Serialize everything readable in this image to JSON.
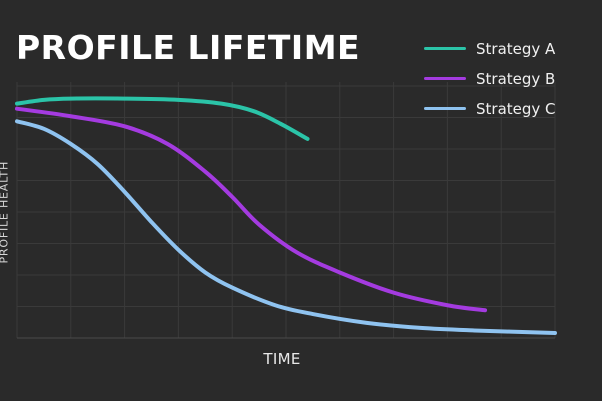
{
  "chart_data": {
    "type": "line",
    "title": "PROFILE LIFETIME",
    "xlabel": "TIME",
    "ylabel": "PROFILE HEALTH",
    "xlim": [
      0,
      100
    ],
    "ylim": [
      0,
      100
    ],
    "grid": true,
    "legend_position": "top-right",
    "series": [
      {
        "name": "Strategy A",
        "color": "#2bc4a8",
        "points": [
          [
            0,
            93
          ],
          [
            5,
            94.5
          ],
          [
            10,
            95
          ],
          [
            20,
            95
          ],
          [
            30,
            94.5
          ],
          [
            38,
            93
          ],
          [
            44,
            90
          ],
          [
            49,
            85
          ],
          [
            54,
            79
          ]
        ]
      },
      {
        "name": "Strategy B",
        "color": "#a43be0",
        "points": [
          [
            0,
            91
          ],
          [
            10,
            88
          ],
          [
            20,
            84
          ],
          [
            28,
            77
          ],
          [
            35,
            66
          ],
          [
            40,
            56
          ],
          [
            45,
            45
          ],
          [
            52,
            34
          ],
          [
            60,
            26
          ],
          [
            70,
            18
          ],
          [
            80,
            13
          ],
          [
            87,
            11
          ]
        ]
      },
      {
        "name": "Strategy C",
        "color": "#8fc3f0",
        "points": [
          [
            0,
            86
          ],
          [
            5,
            83
          ],
          [
            10,
            77
          ],
          [
            15,
            69
          ],
          [
            20,
            58
          ],
          [
            25,
            46
          ],
          [
            30,
            35
          ],
          [
            35,
            26
          ],
          [
            40,
            20
          ],
          [
            48,
            13
          ],
          [
            55,
            9.5
          ],
          [
            65,
            6
          ],
          [
            75,
            4
          ],
          [
            85,
            3
          ],
          [
            100,
            2
          ]
        ]
      }
    ]
  }
}
